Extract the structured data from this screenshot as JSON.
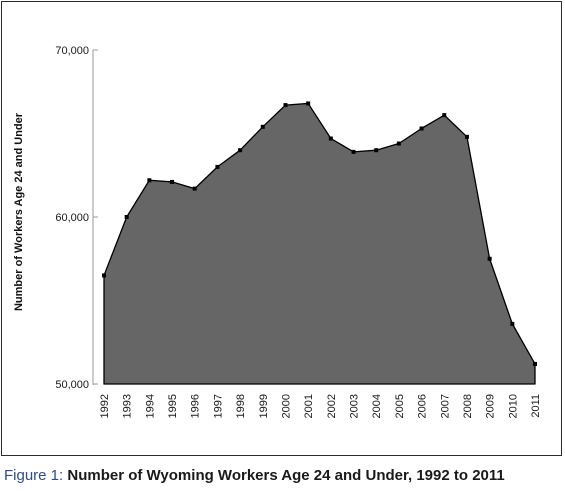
{
  "caption": {
    "label": "Figure 1:",
    "text": "Number of Wyoming Workers Age 24 and Under, 1992 to 2011"
  },
  "chart_data": {
    "type": "area",
    "ylabel": "Number of Workers Age 24 and Under",
    "ylim": [
      50000,
      70000
    ],
    "yticks": [
      50000,
      60000,
      70000
    ],
    "ytick_labels": [
      "50,000",
      "60,000",
      "70,000"
    ],
    "grid": false,
    "fill_color": "#666666",
    "line_color": "#000000",
    "series": [
      {
        "x": [
          "1992",
          "1993",
          "1994",
          "1995",
          "1996",
          "1997",
          "1998",
          "1999",
          "2000",
          "2001",
          "2002",
          "2003",
          "2004",
          "2005",
          "2006",
          "2007",
          "2008",
          "2009",
          "2010",
          "2011"
        ],
        "values": [
          56500,
          60000,
          62200,
          62100,
          61700,
          63000,
          64000,
          65400,
          66700,
          66800,
          64700,
          63900,
          64000,
          64400,
          65300,
          66100,
          64800,
          57500,
          53600,
          51200
        ]
      }
    ]
  }
}
